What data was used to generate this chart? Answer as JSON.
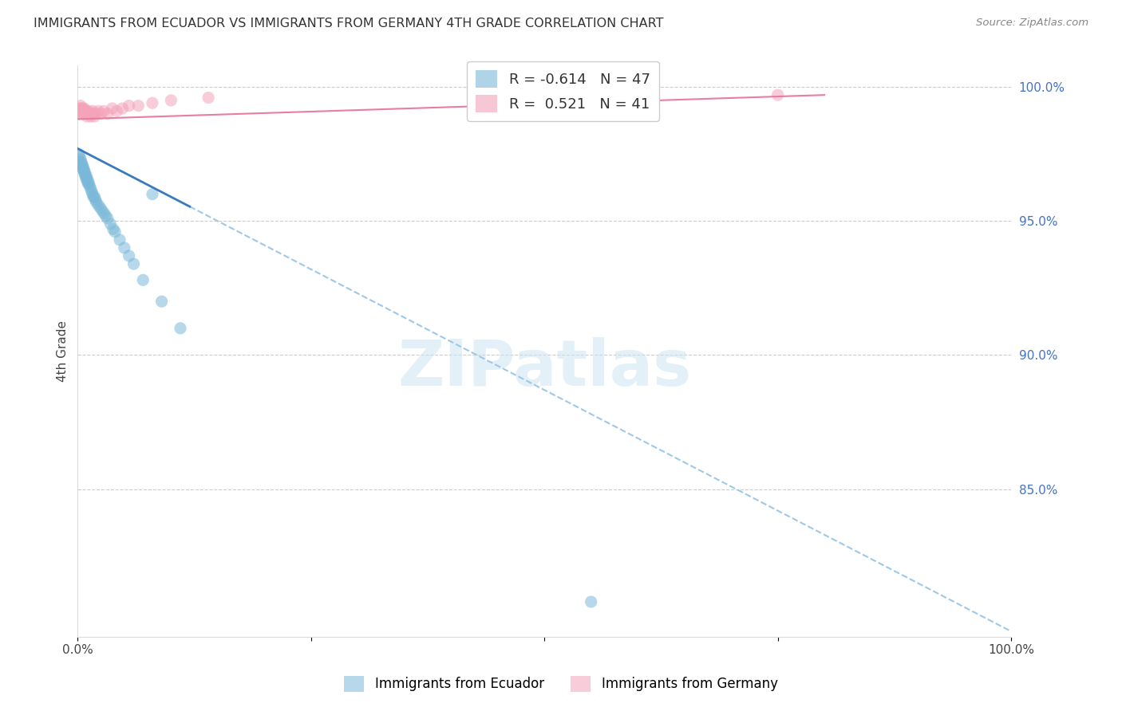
{
  "title": "IMMIGRANTS FROM ECUADOR VS IMMIGRANTS FROM GERMANY 4TH GRADE CORRELATION CHART",
  "source": "Source: ZipAtlas.com",
  "ylabel": "4th Grade",
  "ylabel_right_labels": [
    "100.0%",
    "95.0%",
    "90.0%",
    "85.0%"
  ],
  "ylabel_right_values": [
    1.0,
    0.95,
    0.9,
    0.85
  ],
  "x_min": 0.0,
  "x_max": 1.0,
  "y_min": 0.795,
  "y_max": 1.008,
  "legend_r_ecuador": "-0.614",
  "legend_n_ecuador": "47",
  "legend_r_germany": "0.521",
  "legend_n_germany": "41",
  "ecuador_color": "#7ab8d9",
  "germany_color": "#f4a3ba",
  "ecuador_line_color": "#3a7abf",
  "germany_line_color": "#e87da0",
  "dot_size": 120,
  "ecuador_scatter_x": [
    0.001,
    0.002,
    0.003,
    0.003,
    0.004,
    0.004,
    0.005,
    0.005,
    0.006,
    0.006,
    0.007,
    0.007,
    0.008,
    0.008,
    0.009,
    0.009,
    0.01,
    0.01,
    0.011,
    0.011,
    0.012,
    0.013,
    0.014,
    0.015,
    0.016,
    0.017,
    0.018,
    0.019,
    0.02,
    0.022,
    0.024,
    0.026,
    0.028,
    0.03,
    0.032,
    0.035,
    0.038,
    0.04,
    0.045,
    0.05,
    0.055,
    0.06,
    0.07,
    0.08,
    0.09,
    0.11,
    0.55
  ],
  "ecuador_scatter_y": [
    0.975,
    0.974,
    0.973,
    0.972,
    0.971,
    0.972,
    0.971,
    0.97,
    0.969,
    0.97,
    0.969,
    0.968,
    0.968,
    0.967,
    0.967,
    0.966,
    0.966,
    0.965,
    0.965,
    0.964,
    0.964,
    0.963,
    0.962,
    0.961,
    0.96,
    0.959,
    0.959,
    0.958,
    0.957,
    0.956,
    0.955,
    0.954,
    0.953,
    0.952,
    0.951,
    0.949,
    0.947,
    0.946,
    0.943,
    0.94,
    0.937,
    0.934,
    0.928,
    0.96,
    0.92,
    0.91,
    0.808
  ],
  "germany_scatter_x": [
    0.001,
    0.002,
    0.002,
    0.003,
    0.003,
    0.004,
    0.004,
    0.005,
    0.005,
    0.006,
    0.006,
    0.007,
    0.007,
    0.008,
    0.008,
    0.009,
    0.009,
    0.01,
    0.01,
    0.011,
    0.012,
    0.013,
    0.014,
    0.015,
    0.016,
    0.017,
    0.018,
    0.02,
    0.022,
    0.025,
    0.028,
    0.032,
    0.037,
    0.042,
    0.048,
    0.055,
    0.065,
    0.08,
    0.1,
    0.14,
    0.75
  ],
  "germany_scatter_y": [
    0.991,
    0.99,
    0.992,
    0.991,
    0.993,
    0.991,
    0.992,
    0.99,
    0.992,
    0.991,
    0.99,
    0.991,
    0.992,
    0.99,
    0.991,
    0.99,
    0.991,
    0.99,
    0.989,
    0.99,
    0.991,
    0.99,
    0.989,
    0.99,
    0.991,
    0.99,
    0.989,
    0.99,
    0.991,
    0.99,
    0.991,
    0.99,
    0.992,
    0.991,
    0.992,
    0.993,
    0.993,
    0.994,
    0.995,
    0.996,
    0.997
  ],
  "eq_line_x_start": 0.0,
  "eq_line_x_solid_end": 0.12,
  "eq_line_x_dashed_end": 1.0,
  "eq_line_y_at_0": 0.977,
  "eq_line_y_at_1": 0.797,
  "ger_line_x_start": 0.0,
  "ger_line_x_end": 0.8,
  "ger_line_y_at_0": 0.988,
  "ger_line_y_at_end": 0.997
}
